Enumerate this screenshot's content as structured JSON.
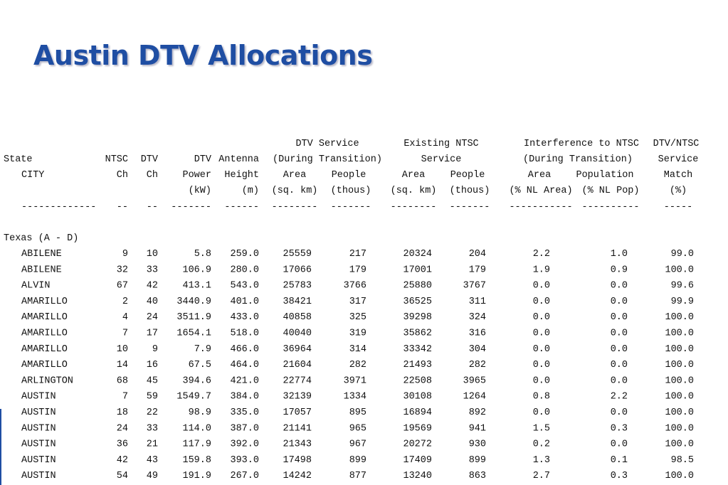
{
  "title": "Austin DTV Allocations",
  "table": {
    "header_rows": [
      [
        "DTV Service",
        "Existing NTSC",
        "Interference to NTSC",
        "DTV/NTSC"
      ],
      [
        "State",
        "NTSC",
        "DTV",
        "DTV",
        "Antenna",
        "(During Transition)",
        "Service",
        "(During Transition)",
        "Service"
      ],
      [
        "CITY",
        "Ch",
        "Ch",
        "Power",
        "Height",
        "Area",
        "People",
        "Area",
        "People",
        "Area",
        "Population",
        "Match"
      ],
      [
        "(kW)",
        "(m)",
        "(sq. km)",
        "(thous)",
        "(sq. km)",
        "(thous)",
        "(% NL Area)",
        "(% NL Pop)",
        "(%)"
      ]
    ],
    "separator": [
      "-------------",
      "--",
      "--",
      "-------",
      "------",
      "--------",
      "-------",
      "--------",
      "-------",
      "-----------",
      "----------",
      "-----"
    ],
    "section": "Texas (A - D)",
    "rows": [
      [
        "ABILENE",
        "9",
        "10",
        "5.8",
        "259.0",
        "25559",
        "217",
        "20324",
        "204",
        "2.2",
        "1.0",
        "99.0"
      ],
      [
        "ABILENE",
        "32",
        "33",
        "106.9",
        "280.0",
        "17066",
        "179",
        "17001",
        "179",
        "1.9",
        "0.9",
        "100.0"
      ],
      [
        "ALVIN",
        "67",
        "42",
        "413.1",
        "543.0",
        "25783",
        "3766",
        "25880",
        "3767",
        "0.0",
        "0.0",
        "99.6"
      ],
      [
        "AMARILLO",
        "2",
        "40",
        "3440.9",
        "401.0",
        "38421",
        "317",
        "36525",
        "311",
        "0.0",
        "0.0",
        "99.9"
      ],
      [
        "AMARILLO",
        "4",
        "24",
        "3511.9",
        "433.0",
        "40858",
        "325",
        "39298",
        "324",
        "0.0",
        "0.0",
        "100.0"
      ],
      [
        "AMARILLO",
        "7",
        "17",
        "1654.1",
        "518.0",
        "40040",
        "319",
        "35862",
        "316",
        "0.0",
        "0.0",
        "100.0"
      ],
      [
        "AMARILLO",
        "10",
        "9",
        "7.9",
        "466.0",
        "36964",
        "314",
        "33342",
        "304",
        "0.0",
        "0.0",
        "100.0"
      ],
      [
        "AMARILLO",
        "14",
        "16",
        "67.5",
        "464.0",
        "21604",
        "282",
        "21493",
        "282",
        "0.0",
        "0.0",
        "100.0"
      ],
      [
        "ARLINGTON",
        "68",
        "45",
        "394.6",
        "421.0",
        "22774",
        "3971",
        "22508",
        "3965",
        "0.0",
        "0.0",
        "100.0"
      ],
      [
        "AUSTIN",
        "7",
        "59",
        "1549.7",
        "384.0",
        "32139",
        "1334",
        "30108",
        "1264",
        "0.8",
        "2.2",
        "100.0"
      ],
      [
        "AUSTIN",
        "18",
        "22",
        "98.9",
        "335.0",
        "17057",
        "895",
        "16894",
        "892",
        "0.0",
        "0.0",
        "100.0"
      ],
      [
        "AUSTIN",
        "24",
        "33",
        "114.0",
        "387.0",
        "21141",
        "965",
        "19569",
        "941",
        "1.5",
        "0.3",
        "100.0"
      ],
      [
        "AUSTIN",
        "36",
        "21",
        "117.9",
        "392.0",
        "21343",
        "967",
        "20272",
        "930",
        "0.2",
        "0.0",
        "100.0"
      ],
      [
        "AUSTIN",
        "42",
        "43",
        "159.8",
        "393.0",
        "17498",
        "899",
        "17409",
        "899",
        "1.3",
        "0.1",
        "98.5"
      ],
      [
        "AUSTIN",
        "54",
        "49",
        "191.9",
        "267.0",
        "14242",
        "877",
        "13240",
        "863",
        "2.7",
        "0.3",
        "100.0"
      ]
    ]
  }
}
